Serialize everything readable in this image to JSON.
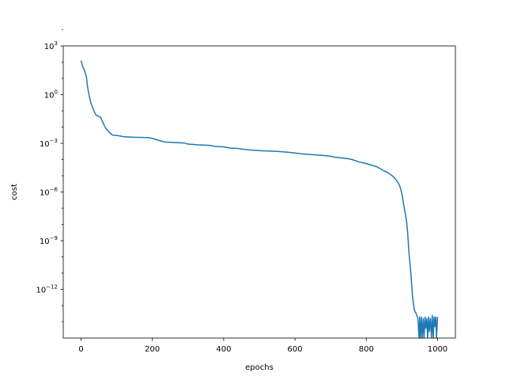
{
  "chart_data": {
    "type": "line",
    "xlabel": "epochs",
    "ylabel": "cost",
    "xlim": [
      -50,
      1050
    ],
    "ylim_log10": [
      -15,
      3
    ],
    "y_scale": "log",
    "grid": false,
    "xticks": [
      {
        "value": 0,
        "label": "0"
      },
      {
        "value": 200,
        "label": "200"
      },
      {
        "value": 400,
        "label": "400"
      },
      {
        "value": 600,
        "label": "600"
      },
      {
        "value": 800,
        "label": "800"
      },
      {
        "value": 1000,
        "label": "1000"
      }
    ],
    "yticks": [
      {
        "exp": 3,
        "base": "10",
        "sup": "3"
      },
      {
        "exp": 0,
        "base": "10",
        "sup": "0"
      },
      {
        "exp": -3,
        "base": "10",
        "sup": "−3"
      },
      {
        "exp": -6,
        "base": "10",
        "sup": "−6"
      },
      {
        "exp": -9,
        "base": "10",
        "sup": "−9"
      },
      {
        "exp": -12,
        "base": "10",
        "sup": "−12"
      }
    ],
    "series": [
      {
        "color": "#1f77b4",
        "x": [
          0,
          5,
          10,
          15,
          18,
          22,
          28,
          35,
          40,
          45,
          55,
          65,
          70,
          75,
          80,
          85,
          90,
          100,
          110,
          120,
          150,
          190,
          200,
          215,
          235,
          260,
          290,
          300,
          330,
          360,
          380,
          400,
          420,
          440,
          460,
          480,
          500,
          550,
          580,
          600,
          620,
          650,
          680,
          700,
          710,
          730,
          750,
          760,
          780,
          800,
          830,
          850,
          860,
          870,
          880,
          890,
          895,
          900,
          905,
          910,
          913,
          916,
          920,
          925,
          930,
          935,
          940,
          945,
          948,
          950,
          952,
          955,
          957,
          960,
          962,
          965,
          967,
          970,
          972,
          975,
          977,
          980,
          983,
          985,
          988,
          990,
          992,
          995,
          997,
          1000
        ],
        "y_log10": [
          2.1,
          1.7,
          1.45,
          1.1,
          0.5,
          0.0,
          -0.55,
          -0.95,
          -1.2,
          -1.3,
          -1.4,
          -1.9,
          -2.1,
          -2.2,
          -2.35,
          -2.45,
          -2.5,
          -2.52,
          -2.55,
          -2.6,
          -2.63,
          -2.65,
          -2.7,
          -2.8,
          -2.92,
          -2.95,
          -2.98,
          -3.05,
          -3.1,
          -3.13,
          -3.2,
          -3.22,
          -3.3,
          -3.32,
          -3.38,
          -3.42,
          -3.45,
          -3.5,
          -3.55,
          -3.6,
          -3.65,
          -3.7,
          -3.75,
          -3.8,
          -3.85,
          -3.9,
          -3.95,
          -4.0,
          -4.15,
          -4.25,
          -4.45,
          -4.7,
          -4.8,
          -4.95,
          -5.15,
          -5.45,
          -5.7,
          -6.1,
          -6.8,
          -7.4,
          -7.8,
          -8.5,
          -9.8,
          -11.0,
          -12.5,
          -13.3,
          -13.5,
          -13.8,
          -15.0,
          -13.7,
          -15.0,
          -13.7,
          -15.0,
          -13.8,
          -15.0,
          -13.7,
          -14.4,
          -13.8,
          -15.0,
          -13.7,
          -14.6,
          -13.8,
          -15.0,
          -13.6,
          -15.0,
          -13.7,
          -14.3,
          -13.7,
          -15.0,
          -13.7
        ]
      }
    ]
  }
}
